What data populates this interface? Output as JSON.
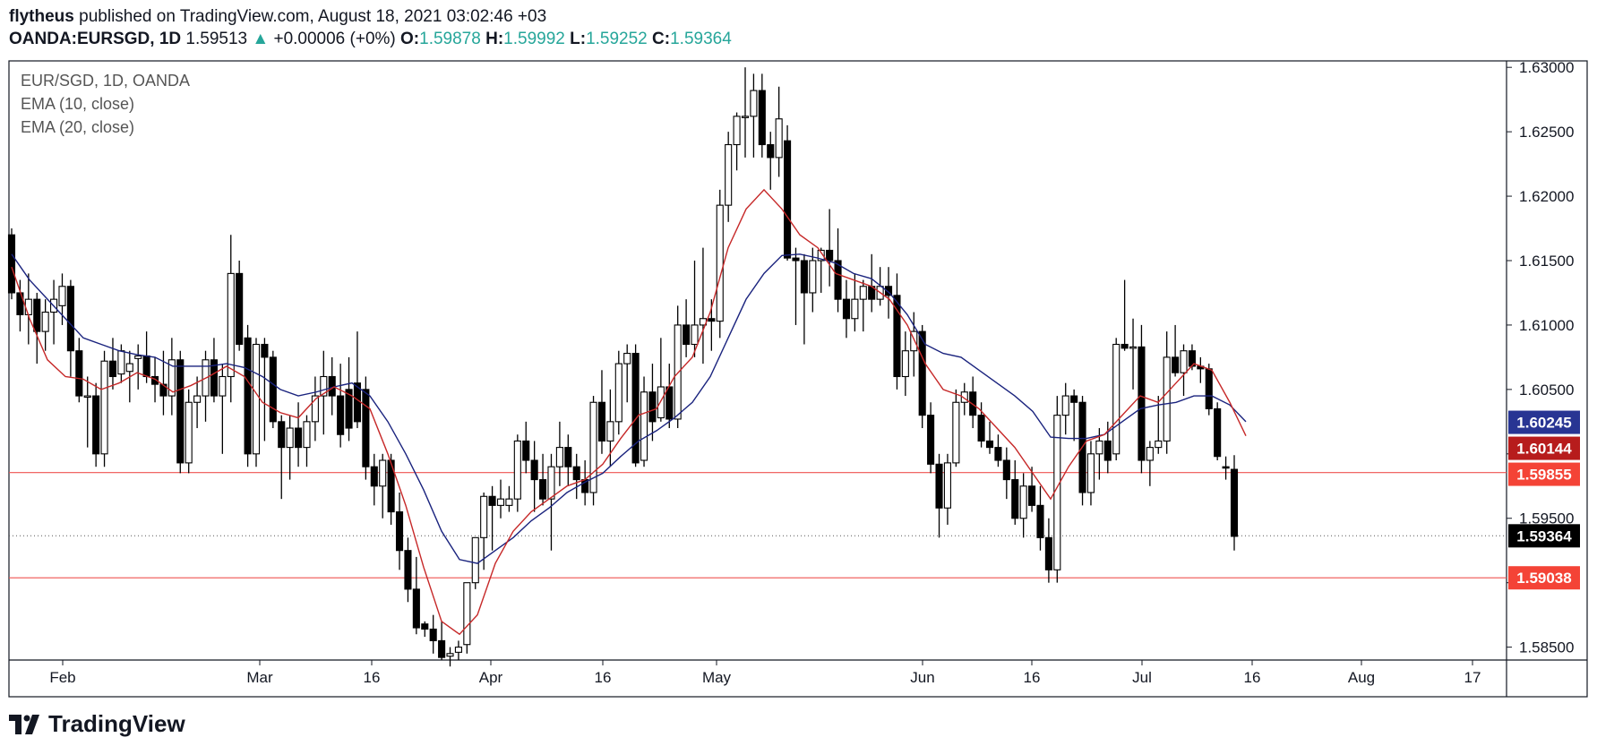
{
  "header": {
    "publisher": "flytheus",
    "published_text": "published on TradingView.com, August 18, 2021 03:02:46 +03",
    "symbol": "OANDA:EURSGD, 1D",
    "last": "1.59513",
    "change_arrow": "▲",
    "change": "+0.00006 (+0%)",
    "o_label": "O:",
    "o_value": "1.59878",
    "h_label": "H:",
    "h_value": "1.59992",
    "l_label": "L:",
    "l_value": "1.59252",
    "c_label": "C:",
    "c_value": "1.59364"
  },
  "legend": {
    "symbol": "EUR/SGD, 1D, OANDA",
    "ema10": "EMA (10, close)",
    "ema20": "EMA (20, close)"
  },
  "footer": {
    "brand": "TradingView"
  },
  "colors": {
    "ema10": "#c62828",
    "ema20": "#1a237e",
    "level_line": "#ef5350",
    "accent_teal": "#26a69a",
    "badge_ema20": "#283593",
    "badge_ema10": "#b71c1c",
    "badge_level": "#f44336",
    "badge_last": "#000000"
  },
  "chart_data": {
    "type": "candlestick",
    "y_ticks": [
      "1.63000",
      "1.62500",
      "1.62000",
      "1.61500",
      "1.61000",
      "1.60500",
      "1.60000",
      "1.59500",
      "1.59000",
      "1.58500"
    ],
    "x_ticks": [
      "Feb",
      "Mar",
      "16",
      "Apr",
      "16",
      "May",
      "Jun",
      "16",
      "Jul",
      "16",
      "Aug",
      "17"
    ],
    "ylim": [
      1.584,
      1.6305
    ],
    "y_badges": [
      {
        "label": "1.60245",
        "value": 1.60245,
        "role": "ema20"
      },
      {
        "label": "1.60144",
        "value": 1.60144,
        "role": "ema10"
      },
      {
        "label": "1.59855",
        "value": 1.59855,
        "role": "level"
      },
      {
        "label": "1.59364",
        "value": 1.59364,
        "role": "last"
      },
      {
        "label": "1.59038",
        "value": 1.59038,
        "role": "level"
      }
    ],
    "horizontal_lines": [
      1.59038,
      1.59855
    ],
    "last_price_line": 1.59364,
    "candles": [
      [
        1.617,
        1.6175,
        1.612,
        1.6125
      ],
      [
        1.6125,
        1.6135,
        1.6095,
        1.6108
      ],
      [
        1.6108,
        1.614,
        1.6085,
        1.612
      ],
      [
        1.612,
        1.6125,
        1.607,
        1.6095
      ],
      [
        1.6095,
        1.612,
        1.608,
        1.611
      ],
      [
        1.611,
        1.6135,
        1.6085,
        1.612
      ],
      [
        1.6115,
        1.614,
        1.61,
        1.613
      ],
      [
        1.613,
        1.6135,
        1.606,
        1.608
      ],
      [
        1.608,
        1.609,
        1.604,
        1.6045
      ],
      [
        1.6045,
        1.606,
        1.6005,
        1.6045
      ],
      [
        1.6045,
        1.6055,
        1.599,
        1.6
      ],
      [
        1.6,
        1.608,
        1.599,
        1.6072
      ],
      [
        1.6072,
        1.609,
        1.605,
        1.606
      ],
      [
        1.6062,
        1.6085,
        1.6055,
        1.608
      ],
      [
        1.6064,
        1.608,
        1.604,
        1.607
      ],
      [
        1.6074,
        1.6085,
        1.605,
        1.6076
      ],
      [
        1.6076,
        1.6095,
        1.6055,
        1.606
      ],
      [
        1.606,
        1.6075,
        1.604,
        1.6054
      ],
      [
        1.6054,
        1.608,
        1.603,
        1.6045
      ],
      [
        1.6045,
        1.609,
        1.603,
        1.6073
      ],
      [
        1.6073,
        1.608,
        1.5985,
        1.5993
      ],
      [
        1.5993,
        1.605,
        1.5985,
        1.604
      ],
      [
        1.604,
        1.606,
        1.602,
        1.6045
      ],
      [
        1.6045,
        1.608,
        1.6025,
        1.6073
      ],
      [
        1.6073,
        1.609,
        1.604,
        1.6045
      ],
      [
        1.6045,
        1.607,
        1.6,
        1.606
      ],
      [
        1.606,
        1.617,
        1.604,
        1.614
      ],
      [
        1.614,
        1.615,
        1.608,
        1.6085
      ],
      [
        1.609,
        1.61,
        1.599,
        1.6
      ],
      [
        1.6,
        1.609,
        1.599,
        1.6085
      ],
      [
        1.6085,
        1.609,
        1.601,
        1.6075
      ],
      [
        1.6075,
        1.608,
        1.602,
        1.6025
      ],
      [
        1.6025,
        1.603,
        1.5965,
        1.6005
      ],
      [
        1.6005,
        1.603,
        1.598,
        1.602
      ],
      [
        1.602,
        1.604,
        1.599,
        1.6005
      ],
      [
        1.6005,
        1.603,
        1.599,
        1.6025
      ],
      [
        1.6025,
        1.606,
        1.601,
        1.6045
      ],
      [
        1.6045,
        1.608,
        1.6015,
        1.606
      ],
      [
        1.606,
        1.6075,
        1.603,
        1.6045
      ],
      [
        1.6045,
        1.607,
        1.6005,
        1.6015
      ],
      [
        1.605,
        1.6075,
        1.601,
        1.602
      ],
      [
        1.6055,
        1.6095,
        1.602,
        1.6025
      ],
      [
        1.605,
        1.606,
        1.598,
        1.599
      ],
      [
        1.599,
        1.6,
        1.596,
        1.5975
      ],
      [
        1.5975,
        1.6,
        1.595,
        1.5995
      ],
      [
        1.5995,
        1.6,
        1.5945,
        1.5955
      ],
      [
        1.5955,
        1.597,
        1.591,
        1.5925
      ],
      [
        1.5925,
        1.5935,
        1.5885,
        1.5895
      ],
      [
        1.5895,
        1.592,
        1.586,
        1.5865
      ],
      [
        1.5868,
        1.587,
        1.5858,
        1.5864
      ],
      [
        1.5864,
        1.5875,
        1.5845,
        1.5855
      ],
      [
        1.5855,
        1.587,
        1.584,
        1.5842
      ],
      [
        1.5843,
        1.585,
        1.5835,
        1.5845
      ],
      [
        1.5846,
        1.5855,
        1.584,
        1.585
      ],
      [
        1.5852,
        1.59,
        1.5845,
        1.59
      ],
      [
        1.59,
        1.5935,
        1.5895,
        1.5935
      ],
      [
        1.5935,
        1.597,
        1.591,
        1.5967
      ],
      [
        1.5967,
        1.5975,
        1.5925,
        1.596
      ],
      [
        1.596,
        1.598,
        1.595,
        1.5965
      ],
      [
        1.596,
        1.5975,
        1.5955,
        1.5965
      ],
      [
        1.5965,
        1.6015,
        1.5955,
        1.601
      ],
      [
        1.601,
        1.6025,
        1.5985,
        1.5995
      ],
      [
        1.5995,
        1.601,
        1.5955,
        1.598
      ],
      [
        1.598,
        1.6,
        1.596,
        1.5965
      ],
      [
        1.5965,
        1.6,
        1.5925,
        1.599
      ],
      [
        1.599,
        1.6025,
        1.5975,
        1.6005
      ],
      [
        1.6005,
        1.6015,
        1.5975,
        1.599
      ],
      [
        1.599,
        1.6,
        1.5965,
        1.598
      ],
      [
        1.598,
        1.5995,
        1.596,
        1.597
      ],
      [
        1.597,
        1.6045,
        1.596,
        1.604
      ],
      [
        1.604,
        1.6065,
        1.6,
        1.601
      ],
      [
        1.601,
        1.605,
        1.599,
        1.6025
      ],
      [
        1.6025,
        1.608,
        1.6015,
        1.607
      ],
      [
        1.607,
        1.6085,
        1.604,
        1.6078
      ],
      [
        1.6078,
        1.6085,
        1.599,
        1.5993
      ],
      [
        1.5995,
        1.606,
        1.599,
        1.6048
      ],
      [
        1.6048,
        1.607,
        1.601,
        1.6025
      ],
      [
        1.6028,
        1.609,
        1.6025,
        1.6052
      ],
      [
        1.6052,
        1.607,
        1.602,
        1.6027
      ],
      [
        1.6027,
        1.6115,
        1.602,
        1.61
      ],
      [
        1.61,
        1.612,
        1.6075,
        1.6085
      ],
      [
        1.6085,
        1.615,
        1.6075,
        1.61
      ],
      [
        1.61,
        1.616,
        1.607,
        1.6105
      ],
      [
        1.6105,
        1.612,
        1.608,
        1.6103
      ],
      [
        1.6103,
        1.6205,
        1.609,
        1.6193
      ],
      [
        1.6193,
        1.625,
        1.618,
        1.624
      ],
      [
        1.624,
        1.6265,
        1.622,
        1.6262
      ],
      [
        1.6262,
        1.63,
        1.623,
        1.6262
      ],
      [
        1.6262,
        1.6295,
        1.623,
        1.6282
      ],
      [
        1.6282,
        1.6295,
        1.623,
        1.624
      ],
      [
        1.624,
        1.625,
        1.6205,
        1.623
      ],
      [
        1.623,
        1.6285,
        1.6215,
        1.626
      ],
      [
        1.6243,
        1.6255,
        1.615,
        1.6152
      ],
      [
        1.6152,
        1.616,
        1.61,
        1.615
      ],
      [
        1.615,
        1.6155,
        1.6085,
        1.6125
      ],
      [
        1.6125,
        1.616,
        1.611,
        1.615
      ],
      [
        1.615,
        1.616,
        1.6125,
        1.6158
      ],
      [
        1.6158,
        1.619,
        1.613,
        1.615
      ],
      [
        1.615,
        1.6175,
        1.611,
        1.612
      ],
      [
        1.612,
        1.6135,
        1.609,
        1.6105
      ],
      [
        1.6105,
        1.614,
        1.6095,
        1.612
      ],
      [
        1.612,
        1.6135,
        1.6095,
        1.613
      ],
      [
        1.613,
        1.6155,
        1.611,
        1.612
      ],
      [
        1.612,
        1.6145,
        1.6115,
        1.613
      ],
      [
        1.613,
        1.6145,
        1.6105,
        1.6123
      ],
      [
        1.6123,
        1.614,
        1.605,
        1.606
      ],
      [
        1.606,
        1.6095,
        1.6045,
        1.608
      ],
      [
        1.608,
        1.611,
        1.606,
        1.6095
      ],
      [
        1.6095,
        1.61,
        1.602,
        1.603
      ],
      [
        1.603,
        1.604,
        1.5985,
        1.5992
      ],
      [
        1.5992,
        1.6,
        1.5935,
        1.5958
      ],
      [
        1.5958,
        1.6,
        1.5945,
        1.5993
      ],
      [
        1.5993,
        1.605,
        1.599,
        1.604
      ],
      [
        1.604,
        1.6055,
        1.603,
        1.6048
      ],
      [
        1.6048,
        1.606,
        1.602,
        1.603
      ],
      [
        1.603,
        1.604,
        1.6005,
        1.601
      ],
      [
        1.601,
        1.6025,
        1.6,
        1.6005
      ],
      [
        1.6005,
        1.6015,
        1.599,
        1.5995
      ],
      [
        1.5995,
        1.6005,
        1.5965,
        1.598
      ],
      [
        1.598,
        1.5995,
        1.5945,
        1.595
      ],
      [
        1.595,
        1.5985,
        1.5935,
        1.5975
      ],
      [
        1.5975,
        1.599,
        1.5955,
        1.596
      ],
      [
        1.596,
        1.5975,
        1.5925,
        1.5935
      ],
      [
        1.5935,
        1.595,
        1.59,
        1.591
      ],
      [
        1.591,
        1.6045,
        1.59,
        1.603
      ],
      [
        1.603,
        1.6055,
        1.6015,
        1.6045
      ],
      [
        1.6045,
        1.605,
        1.601,
        1.604
      ],
      [
        1.604,
        1.6045,
        1.596,
        1.597
      ],
      [
        1.597,
        1.601,
        1.596,
        1.6
      ],
      [
        1.6,
        1.602,
        1.598,
        1.601
      ],
      [
        1.601,
        1.6025,
        1.5985,
        1.5995
      ],
      [
        1.6,
        1.609,
        1.5995,
        1.6085
      ],
      [
        1.6085,
        1.6135,
        1.608,
        1.6082
      ],
      [
        1.6082,
        1.6105,
        1.605,
        1.6083
      ],
      [
        1.6083,
        1.61,
        1.5985,
        1.5995
      ],
      [
        1.5995,
        1.601,
        1.5975,
        1.6005
      ],
      [
        1.6005,
        1.6045,
        1.6,
        1.601
      ],
      [
        1.601,
        1.6095,
        1.6,
        1.6075
      ],
      [
        1.6075,
        1.61,
        1.606,
        1.6063
      ],
      [
        1.6063,
        1.6085,
        1.6045,
        1.608
      ],
      [
        1.608,
        1.6085,
        1.6065,
        1.6068
      ],
      [
        1.6068,
        1.6075,
        1.6055,
        1.6066
      ],
      [
        1.6066,
        1.607,
        1.603,
        1.6035
      ],
      [
        1.6035,
        1.604,
        1.5995,
        1.5998
      ],
      [
        1.599,
        1.5998,
        1.598,
        1.5989
      ],
      [
        1.5988,
        1.5999,
        1.5925,
        1.5936
      ]
    ],
    "ema10": [
      [
        0,
        1.6145
      ],
      [
        20,
        1.6105
      ],
      [
        40,
        1.6073
      ],
      [
        60,
        1.606
      ],
      [
        80,
        1.6058
      ],
      [
        100,
        1.605
      ],
      [
        120,
        1.6055
      ],
      [
        140,
        1.6063
      ],
      [
        160,
        1.6058
      ],
      [
        180,
        1.6048
      ],
      [
        200,
        1.6053
      ],
      [
        220,
        1.606
      ],
      [
        240,
        1.6068
      ],
      [
        260,
        1.606
      ],
      [
        280,
        1.604
      ],
      [
        300,
        1.6032
      ],
      [
        320,
        1.6028
      ],
      [
        340,
        1.6043
      ],
      [
        360,
        1.6052
      ],
      [
        380,
        1.6045
      ],
      [
        400,
        1.6035
      ],
      [
        420,
        1.6
      ],
      [
        440,
        1.596
      ],
      [
        460,
        1.5912
      ],
      [
        480,
        1.587
      ],
      [
        500,
        1.586
      ],
      [
        520,
        1.5875
      ],
      [
        540,
        1.5915
      ],
      [
        560,
        1.594
      ],
      [
        580,
        1.5955
      ],
      [
        600,
        1.5965
      ],
      [
        620,
        1.5975
      ],
      [
        640,
        1.598
      ],
      [
        660,
        1.5992
      ],
      [
        680,
        1.6012
      ],
      [
        700,
        1.603
      ],
      [
        720,
        1.6035
      ],
      [
        740,
        1.606
      ],
      [
        760,
        1.6075
      ],
      [
        780,
        1.611
      ],
      [
        800,
        1.616
      ],
      [
        820,
        1.619
      ],
      [
        840,
        1.6205
      ],
      [
        860,
        1.619
      ],
      [
        880,
        1.617
      ],
      [
        900,
        1.616
      ],
      [
        920,
        1.614
      ],
      [
        940,
        1.6135
      ],
      [
        960,
        1.613
      ],
      [
        980,
        1.612
      ],
      [
        1000,
        1.61
      ],
      [
        1020,
        1.607
      ],
      [
        1040,
        1.605
      ],
      [
        1060,
        1.6045
      ],
      [
        1080,
        1.6035
      ],
      [
        1100,
        1.602
      ],
      [
        1120,
        1.6005
      ],
      [
        1140,
        1.5985
      ],
      [
        1160,
        1.5965
      ],
      [
        1180,
        1.599
      ],
      [
        1200,
        1.601
      ],
      [
        1220,
        1.6015
      ],
      [
        1240,
        1.603
      ],
      [
        1260,
        1.6045
      ],
      [
        1280,
        1.604
      ],
      [
        1300,
        1.6055
      ],
      [
        1320,
        1.607
      ],
      [
        1340,
        1.6065
      ],
      [
        1360,
        1.604
      ],
      [
        1378,
        1.6014
      ]
    ],
    "ema20": [
      [
        0,
        1.6155
      ],
      [
        20,
        1.6135
      ],
      [
        40,
        1.612
      ],
      [
        60,
        1.6105
      ],
      [
        80,
        1.609
      ],
      [
        100,
        1.6085
      ],
      [
        120,
        1.608
      ],
      [
        140,
        1.6077
      ],
      [
        160,
        1.6075
      ],
      [
        180,
        1.6068
      ],
      [
        200,
        1.6068
      ],
      [
        220,
        1.6068
      ],
      [
        240,
        1.607
      ],
      [
        260,
        1.6067
      ],
      [
        280,
        1.606
      ],
      [
        300,
        1.605
      ],
      [
        320,
        1.6045
      ],
      [
        340,
        1.6048
      ],
      [
        360,
        1.6052
      ],
      [
        380,
        1.6055
      ],
      [
        400,
        1.6045
      ],
      [
        420,
        1.6025
      ],
      [
        440,
        1.6
      ],
      [
        460,
        1.5972
      ],
      [
        480,
        1.594
      ],
      [
        500,
        1.5918
      ],
      [
        520,
        1.5915
      ],
      [
        540,
        1.5925
      ],
      [
        560,
        1.5935
      ],
      [
        580,
        1.5948
      ],
      [
        600,
        1.5958
      ],
      [
        620,
        1.597
      ],
      [
        640,
        1.5978
      ],
      [
        660,
        1.5985
      ],
      [
        680,
        1.5998
      ],
      [
        700,
        1.601
      ],
      [
        720,
        1.6018
      ],
      [
        740,
        1.6028
      ],
      [
        760,
        1.604
      ],
      [
        780,
        1.606
      ],
      [
        800,
        1.609
      ],
      [
        820,
        1.612
      ],
      [
        840,
        1.614
      ],
      [
        860,
        1.6154
      ],
      [
        880,
        1.6155
      ],
      [
        900,
        1.6152
      ],
      [
        920,
        1.6148
      ],
      [
        940,
        1.614
      ],
      [
        960,
        1.6136
      ],
      [
        980,
        1.6125
      ],
      [
        1000,
        1.6108
      ],
      [
        1020,
        1.6085
      ],
      [
        1040,
        1.6078
      ],
      [
        1060,
        1.6075
      ],
      [
        1080,
        1.6065
      ],
      [
        1100,
        1.6055
      ],
      [
        1120,
        1.6045
      ],
      [
        1140,
        1.6033
      ],
      [
        1160,
        1.6013
      ],
      [
        1180,
        1.6012
      ],
      [
        1200,
        1.6012
      ],
      [
        1220,
        1.6015
      ],
      [
        1240,
        1.6025
      ],
      [
        1260,
        1.6035
      ],
      [
        1280,
        1.6038
      ],
      [
        1300,
        1.604
      ],
      [
        1320,
        1.6045
      ],
      [
        1340,
        1.6045
      ],
      [
        1360,
        1.6038
      ],
      [
        1378,
        1.6025
      ]
    ]
  }
}
